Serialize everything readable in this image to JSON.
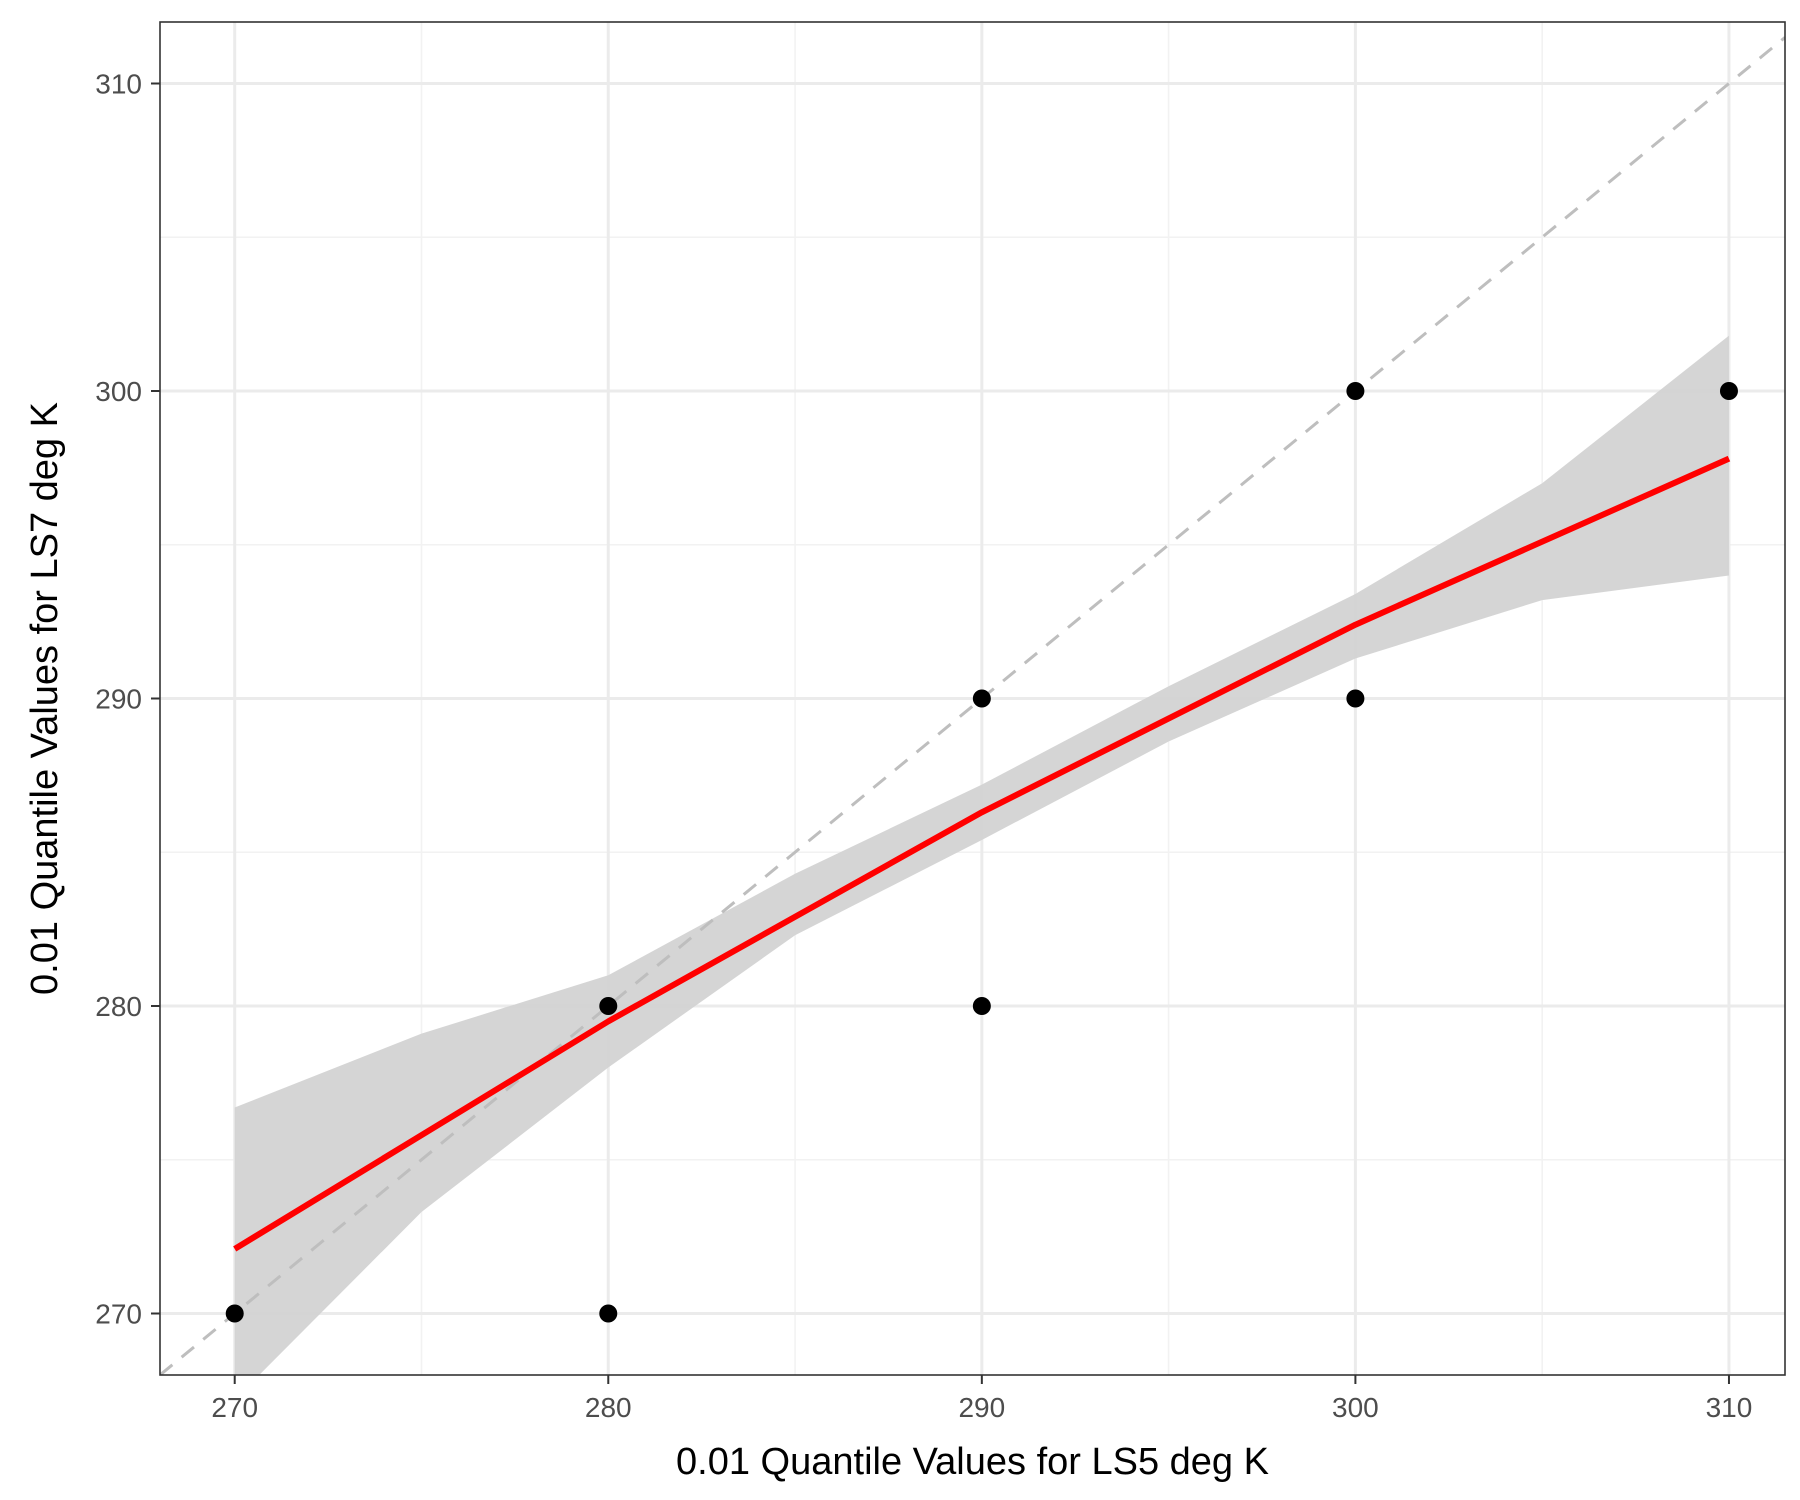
{
  "chart_data": {
    "type": "scatter",
    "xlabel": "0.01 Quantile Values for LS5 deg K",
    "ylabel": "0.01 Quantile Values for LS7 deg K",
    "xlim": [
      268,
      311.5
    ],
    "ylim": [
      268,
      312
    ],
    "x_ticks": [
      270,
      280,
      290,
      300,
      310
    ],
    "y_ticks": [
      270,
      280,
      290,
      300,
      310
    ],
    "grid": true,
    "points": [
      {
        "x": 270,
        "y": 270
      },
      {
        "x": 280,
        "y": 270
      },
      {
        "x": 280,
        "y": 280
      },
      {
        "x": 290,
        "y": 280
      },
      {
        "x": 290,
        "y": 290
      },
      {
        "x": 300,
        "y": 290
      },
      {
        "x": 300,
        "y": 300
      },
      {
        "x": 310,
        "y": 300
      }
    ],
    "reference_line": {
      "kind": "identity",
      "style": "dashed",
      "color": "#bebebe"
    },
    "smooth": {
      "method": "regression",
      "color": "#ff0000",
      "x": [
        270,
        280,
        290,
        300,
        310
      ],
      "y": [
        272.1,
        279.5,
        286.3,
        292.4,
        297.8
      ]
    },
    "confidence_band": {
      "color": "#d3d3d3",
      "x": [
        270,
        275,
        280,
        285,
        290,
        295,
        300,
        305,
        310
      ],
      "lower": [
        267.2,
        273.3,
        278.0,
        282.3,
        285.4,
        288.6,
        291.3,
        293.2,
        294.0
      ],
      "upper": [
        276.7,
        279.1,
        281.0,
        284.3,
        287.2,
        290.4,
        293.4,
        297.0,
        301.8
      ]
    },
    "colors": {
      "points": "#000000",
      "panel_border": "#333333",
      "grid_major": "#ebebeb",
      "grid_minor": "#f2f2f2"
    }
  }
}
